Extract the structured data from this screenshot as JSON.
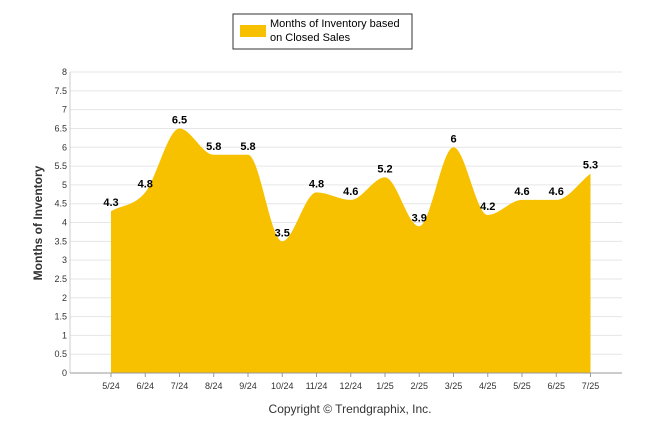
{
  "chart_data": {
    "type": "area",
    "categories": [
      "5/24",
      "6/24",
      "7/24",
      "8/24",
      "9/24",
      "10/24",
      "11/24",
      "12/24",
      "1/25",
      "2/25",
      "3/25",
      "4/25",
      "5/25",
      "6/25",
      "7/25"
    ],
    "series": [
      {
        "name": "Months of Inventory based on Closed Sales",
        "values": [
          4.3,
          4.8,
          6.5,
          5.8,
          5.8,
          3.5,
          4.8,
          4.6,
          5.2,
          3.9,
          6,
          4.2,
          4.6,
          4.6,
          5.3
        ],
        "color": "#F7C100"
      }
    ],
    "data_labels": [
      "4.3",
      "4.8",
      "6.5",
      "5.8",
      "5.8",
      "3.5",
      "4.8",
      "4.6",
      "5.2",
      "3.9",
      "6",
      "4.2",
      "4.6",
      "4.6",
      "5.3"
    ],
    "ylabel": "Months of Inventory",
    "xlabel": "",
    "ylim": [
      0,
      8
    ],
    "yticks": [
      "0",
      "0.5",
      "1",
      "1.5",
      "2",
      "2.5",
      "3",
      "3.5",
      "4",
      "4.5",
      "5",
      "5.5",
      "6",
      "6.5",
      "7",
      "7.5",
      "8"
    ],
    "legend": {
      "placement": "top-center",
      "line1": "Months of Inventory based",
      "line2": "on Closed Sales"
    },
    "grid": true,
    "footer": "Copyright © Trendgraphix, Inc."
  }
}
